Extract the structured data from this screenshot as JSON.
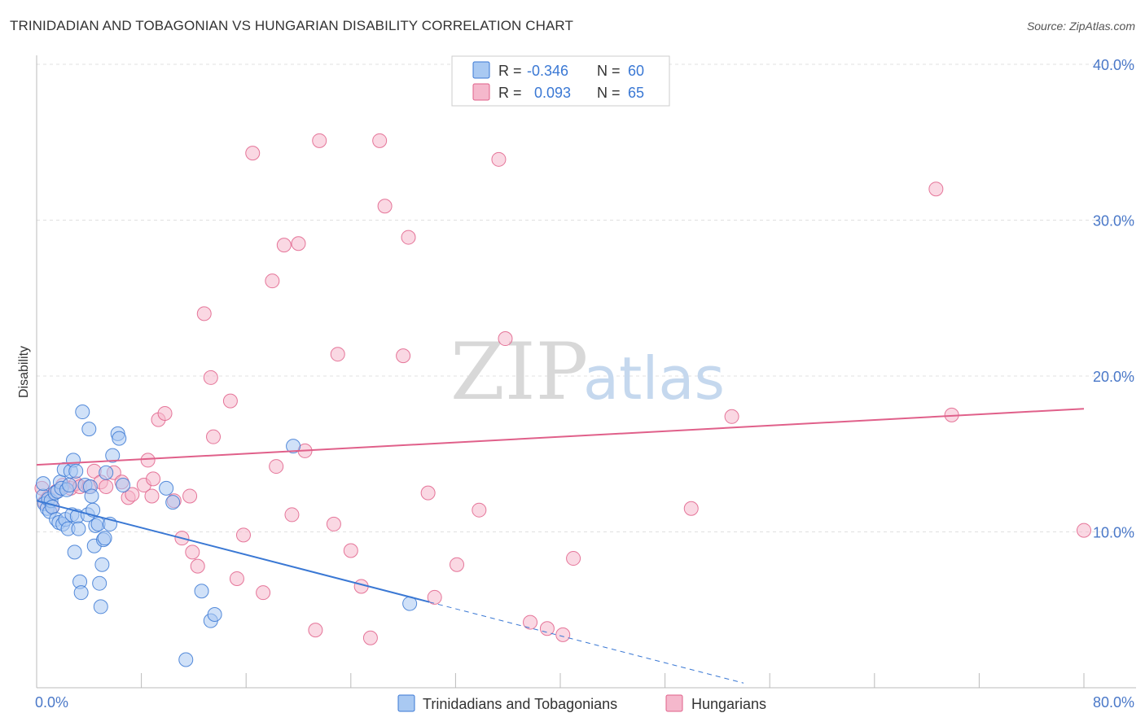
{
  "title": "TRINIDADIAN AND TOBAGONIAN VS HUNGARIAN DISABILITY CORRELATION CHART",
  "source": "Source: ZipAtlas.com",
  "colors": {
    "blue": "#3a78d4",
    "blue_fill": "#a9c9f2",
    "pink": "#e0608a",
    "pink_fill": "#f5b8cc",
    "tick_text": "#4a78c8",
    "grid": "#e0e0e0"
  },
  "legend_top": {
    "rows": [
      {
        "r_label": "R =",
        "r_value": "-0.346",
        "n_label": "N =",
        "n_value": "60"
      },
      {
        "r_label": "R =",
        "r_value": "0.093",
        "n_label": "N =",
        "n_value": "65"
      }
    ]
  },
  "legend_bottom": {
    "items": [
      "Trinidadians and Tobagonians",
      "Hungarians"
    ]
  },
  "watermark": {
    "zip": "ZIP",
    "atlas": "atlas"
  },
  "chart_data": {
    "type": "scatter",
    "title": "TRINIDADIAN AND TOBAGONIAN VS HUNGARIAN DISABILITY CORRELATION CHART",
    "xlabel": "",
    "ylabel": "Disability",
    "xlim": [
      0,
      80
    ],
    "ylim": [
      0,
      40
    ],
    "x_tick_labels": [
      "0.0%",
      "80.0%"
    ],
    "y_ticks": [
      10,
      20,
      30,
      40
    ],
    "y_tick_labels": [
      "10.0%",
      "20.0%",
      "30.0%",
      "40.0%"
    ],
    "grid": true,
    "legend_position": "top-center",
    "series": [
      {
        "name": "Trinidadians and Tobagonians",
        "color": "#3a78d4",
        "trend": {
          "x": [
            0,
            30
          ],
          "y": [
            12.0,
            5.5
          ],
          "dashed_extension_to_x": 54
        },
        "points": [
          [
            0.5,
            12.3
          ],
          [
            0.5,
            13.1
          ],
          [
            0.6,
            11.8
          ],
          [
            0.8,
            11.5
          ],
          [
            0.9,
            12.1
          ],
          [
            1.0,
            11.3
          ],
          [
            1.1,
            12.0
          ],
          [
            1.2,
            11.6
          ],
          [
            1.4,
            12.5
          ],
          [
            1.5,
            10.8
          ],
          [
            1.6,
            12.6
          ],
          [
            1.7,
            10.6
          ],
          [
            1.8,
            13.2
          ],
          [
            1.9,
            12.8
          ],
          [
            2.0,
            10.5
          ],
          [
            2.1,
            14.0
          ],
          [
            2.2,
            10.8
          ],
          [
            2.3,
            12.7
          ],
          [
            2.4,
            10.2
          ],
          [
            2.5,
            13.0
          ],
          [
            2.6,
            13.9
          ],
          [
            2.7,
            11.1
          ],
          [
            2.8,
            14.6
          ],
          [
            2.9,
            8.7
          ],
          [
            3.0,
            13.9
          ],
          [
            3.1,
            11.0
          ],
          [
            3.2,
            10.2
          ],
          [
            3.3,
            6.8
          ],
          [
            3.4,
            6.1
          ],
          [
            3.5,
            17.7
          ],
          [
            3.7,
            13.0
          ],
          [
            3.9,
            11.1
          ],
          [
            4.0,
            16.6
          ],
          [
            4.1,
            12.9
          ],
          [
            4.2,
            12.3
          ],
          [
            4.3,
            11.4
          ],
          [
            4.4,
            9.1
          ],
          [
            4.5,
            10.4
          ],
          [
            4.7,
            10.5
          ],
          [
            4.8,
            6.7
          ],
          [
            4.9,
            5.2
          ],
          [
            5.0,
            7.9
          ],
          [
            5.1,
            9.5
          ],
          [
            5.2,
            9.6
          ],
          [
            5.3,
            13.8
          ],
          [
            5.6,
            10.5
          ],
          [
            5.8,
            14.9
          ],
          [
            6.2,
            16.3
          ],
          [
            6.3,
            16.0
          ],
          [
            6.6,
            13.0
          ],
          [
            9.9,
            12.8
          ],
          [
            10.4,
            11.9
          ],
          [
            11.4,
            1.8
          ],
          [
            12.6,
            6.2
          ],
          [
            13.3,
            4.3
          ],
          [
            13.6,
            4.7
          ],
          [
            19.6,
            15.5
          ],
          [
            28.5,
            5.4
          ]
        ]
      },
      {
        "name": "Hungarians",
        "color": "#e0608a",
        "trend": {
          "x": [
            0,
            80
          ],
          "y": [
            14.3,
            17.9
          ]
        },
        "points": [
          [
            0.4,
            12.8
          ],
          [
            0.6,
            11.9
          ],
          [
            0.9,
            12.2
          ],
          [
            1.2,
            11.6
          ],
          [
            1.5,
            12.6
          ],
          [
            2.0,
            13.0
          ],
          [
            2.6,
            12.8
          ],
          [
            3.0,
            13.1
          ],
          [
            3.3,
            12.9
          ],
          [
            4.0,
            12.9
          ],
          [
            4.4,
            13.9
          ],
          [
            4.9,
            13.2
          ],
          [
            5.3,
            12.9
          ],
          [
            5.9,
            13.8
          ],
          [
            6.5,
            13.2
          ],
          [
            7.0,
            12.2
          ],
          [
            7.3,
            12.4
          ],
          [
            8.2,
            13.0
          ],
          [
            8.5,
            14.6
          ],
          [
            8.8,
            12.3
          ],
          [
            8.9,
            13.4
          ],
          [
            9.3,
            17.2
          ],
          [
            9.8,
            17.6
          ],
          [
            10.5,
            12.0
          ],
          [
            11.1,
            9.6
          ],
          [
            11.7,
            12.3
          ],
          [
            11.9,
            8.7
          ],
          [
            12.3,
            7.8
          ],
          [
            12.8,
            24.0
          ],
          [
            13.3,
            19.9
          ],
          [
            13.5,
            16.1
          ],
          [
            14.8,
            18.4
          ],
          [
            15.3,
            7.0
          ],
          [
            15.8,
            9.8
          ],
          [
            16.5,
            34.3
          ],
          [
            17.3,
            6.1
          ],
          [
            18.0,
            26.1
          ],
          [
            18.3,
            14.2
          ],
          [
            18.9,
            28.4
          ],
          [
            19.5,
            11.1
          ],
          [
            20.0,
            28.5
          ],
          [
            20.5,
            15.2
          ],
          [
            21.3,
            3.7
          ],
          [
            21.6,
            35.1
          ],
          [
            22.7,
            10.5
          ],
          [
            23.0,
            21.4
          ],
          [
            24.0,
            8.8
          ],
          [
            24.8,
            6.5
          ],
          [
            25.5,
            3.2
          ],
          [
            26.2,
            35.1
          ],
          [
            26.6,
            30.9
          ],
          [
            28.0,
            21.3
          ],
          [
            28.4,
            28.9
          ],
          [
            29.9,
            12.5
          ],
          [
            30.4,
            5.8
          ],
          [
            32.1,
            7.9
          ],
          [
            33.8,
            11.4
          ],
          [
            35.3,
            33.9
          ],
          [
            35.8,
            22.4
          ],
          [
            37.7,
            4.2
          ],
          [
            39.0,
            3.8
          ],
          [
            40.2,
            3.4
          ],
          [
            41.0,
            8.3
          ],
          [
            50.0,
            11.5
          ],
          [
            53.1,
            17.4
          ],
          [
            68.7,
            32.0
          ],
          [
            69.9,
            17.5
          ],
          [
            80.0,
            10.1
          ]
        ]
      }
    ]
  }
}
